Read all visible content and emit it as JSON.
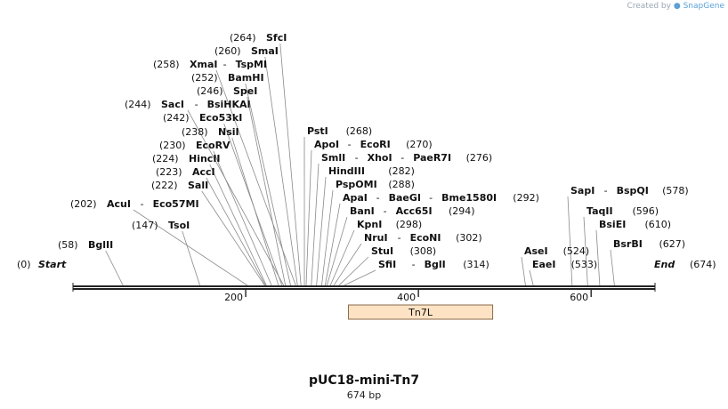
{
  "watermark": {
    "prefix": "Created by",
    "brand": "SnapGene"
  },
  "map": {
    "name": "pUC18-mini-Tn7",
    "length_label": "674 bp",
    "length": 674,
    "start_label": "Start",
    "start_pos": "(0)",
    "end_label": "End",
    "end_pos": "(674)",
    "ticks": [
      200,
      400,
      600
    ],
    "feature": {
      "name": "Tn7L",
      "start": 319,
      "end": 486,
      "fill": "#fde3c4",
      "stroke": "#8a6a4a"
    }
  },
  "sites": [
    {
      "pos": 58,
      "label": "(58)",
      "names": [
        "BglII"
      ]
    },
    {
      "pos": 147,
      "label": "(147)",
      "names": [
        "TsoI"
      ]
    },
    {
      "pos": 202,
      "label": "(202)",
      "names": [
        "AcuI",
        "Eco57MI"
      ]
    },
    {
      "pos": 222,
      "label": "(222)",
      "names": [
        "SalI"
      ]
    },
    {
      "pos": 223,
      "label": "(223)",
      "names": [
        "AccI"
      ]
    },
    {
      "pos": 224,
      "label": "(224)",
      "names": [
        "HincII"
      ]
    },
    {
      "pos": 230,
      "label": "(230)",
      "names": [
        "EcoRV"
      ]
    },
    {
      "pos": 238,
      "label": "(238)",
      "names": [
        "NsiI"
      ]
    },
    {
      "pos": 242,
      "label": "(242)",
      "names": [
        "Eco53kI"
      ]
    },
    {
      "pos": 244,
      "label": "(244)",
      "names": [
        "SacI",
        "BsiHKAI"
      ]
    },
    {
      "pos": 246,
      "label": "(246)",
      "names": [
        "SpeI"
      ]
    },
    {
      "pos": 252,
      "label": "(252)",
      "names": [
        "BamHI"
      ]
    },
    {
      "pos": 258,
      "label": "(258)",
      "names": [
        "XmaI",
        "TspMI"
      ]
    },
    {
      "pos": 260,
      "label": "(260)",
      "names": [
        "SmaI"
      ]
    },
    {
      "pos": 264,
      "label": "(264)",
      "names": [
        "SfcI"
      ]
    },
    {
      "pos": 268,
      "label": "(268)",
      "names": [
        "PstI"
      ]
    },
    {
      "pos": 270,
      "label": "(270)",
      "names": [
        "ApoI",
        "EcoRI"
      ]
    },
    {
      "pos": 276,
      "label": "(276)",
      "names": [
        "SmlI",
        "XhoI",
        "PaeR7I"
      ]
    },
    {
      "pos": 282,
      "label": "(282)",
      "names": [
        "HindIII"
      ]
    },
    {
      "pos": 288,
      "label": "(288)",
      "names": [
        "PspOMI"
      ]
    },
    {
      "pos": 292,
      "label": "(292)",
      "names": [
        "ApaI",
        "BaeGI",
        "Bme1580I"
      ]
    },
    {
      "pos": 294,
      "label": "(294)",
      "names": [
        "BanI",
        "Acc65I"
      ]
    },
    {
      "pos": 298,
      "label": "(298)",
      "names": [
        "KpnI"
      ]
    },
    {
      "pos": 302,
      "label": "(302)",
      "names": [
        "NruI",
        "EcoNI"
      ]
    },
    {
      "pos": 308,
      "label": "(308)",
      "names": [
        "StuI"
      ]
    },
    {
      "pos": 314,
      "label": "(314)",
      "names": [
        "SfiI",
        "BglI"
      ]
    },
    {
      "pos": 524,
      "label": "(524)",
      "names": [
        "AseI"
      ]
    },
    {
      "pos": 533,
      "label": "(533)",
      "names": [
        "EaeI"
      ]
    },
    {
      "pos": 578,
      "label": "(578)",
      "names": [
        "SapI",
        "BspQI"
      ]
    },
    {
      "pos": 596,
      "label": "(596)",
      "names": [
        "TaqII"
      ]
    },
    {
      "pos": 610,
      "label": "(610)",
      "names": [
        "BsiEI"
      ]
    },
    {
      "pos": 627,
      "label": "(627)",
      "names": [
        "BsrBI"
      ]
    }
  ]
}
